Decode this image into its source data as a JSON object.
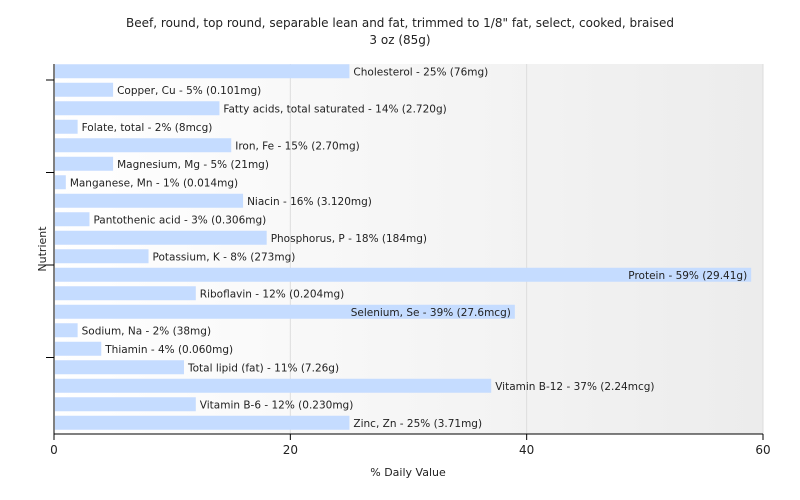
{
  "chart_data": {
    "type": "bar",
    "orientation": "horizontal",
    "title": "Beef, round, top round, separable lean and fat, trimmed to 1/8\" fat, select, cooked, braised",
    "subtitle": "3 oz (85g)",
    "xlabel": "% Daily Value",
    "ylabel": "Nutrient",
    "xlim": [
      0,
      60
    ],
    "xticks": [
      0,
      20,
      40,
      60
    ],
    "grid": true,
    "bar_color": "#c5dcff",
    "categories": [
      "Cholesterol",
      "Copper, Cu",
      "Fatty acids, total saturated",
      "Folate, total",
      "Iron, Fe",
      "Magnesium, Mg",
      "Manganese, Mn",
      "Niacin",
      "Pantothenic acid",
      "Phosphorus, P",
      "Potassium, K",
      "Protein",
      "Riboflavin",
      "Selenium, Se",
      "Sodium, Na",
      "Thiamin",
      "Total lipid (fat)",
      "Vitamin B-12",
      "Vitamin B-6",
      "Zinc, Zn"
    ],
    "values": [
      25,
      5,
      14,
      2,
      15,
      5,
      1,
      16,
      3,
      18,
      8,
      59,
      12,
      39,
      2,
      4,
      11,
      37,
      12,
      25
    ],
    "labels": [
      "Cholesterol - 25% (76mg)",
      "Copper, Cu - 5% (0.101mg)",
      "Fatty acids, total saturated - 14% (2.720g)",
      "Folate, total - 2% (8mcg)",
      "Iron, Fe - 15% (2.70mg)",
      "Magnesium, Mg - 5% (21mg)",
      "Manganese, Mn - 1% (0.014mg)",
      "Niacin - 16% (3.120mg)",
      "Pantothenic acid - 3% (0.306mg)",
      "Phosphorus, P - 18% (184mg)",
      "Potassium, K - 8% (273mg)",
      "Protein - 59% (29.41g)",
      "Riboflavin - 12% (0.204mg)",
      "Selenium, Se - 39% (27.6mcg)",
      "Sodium, Na - 2% (38mg)",
      "Thiamin - 4% (0.060mg)",
      "Total lipid (fat) - 11% (7.26g)",
      "Vitamin B-12 - 37% (2.24mcg)",
      "Vitamin B-6 - 12% (0.230mg)",
      "Zinc, Zn - 25% (3.71mg)"
    ]
  }
}
